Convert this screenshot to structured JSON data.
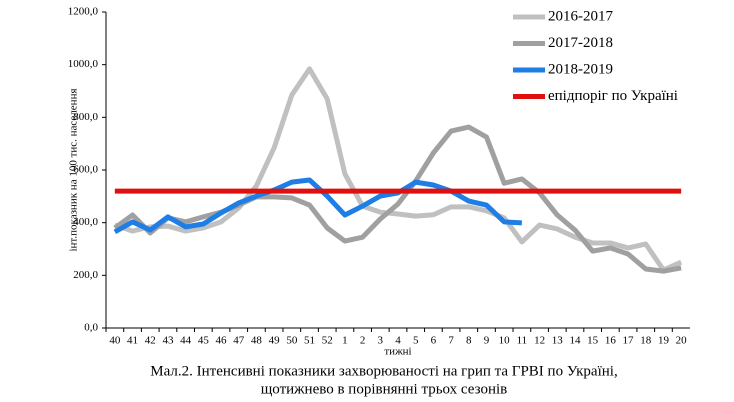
{
  "chart_data": {
    "type": "line",
    "title": "Мал.2. Інтенсивні показники захворюваності на грип та ГРВІ по Україні,",
    "subtitle": "щотижнево в порівнянні трьох сезонів",
    "x_label": "тижні",
    "y_label": "інт.показник на 100 тис. населення",
    "categories": [
      "40",
      "41",
      "42",
      "43",
      "44",
      "45",
      "46",
      "47",
      "48",
      "49",
      "50",
      "51",
      "52",
      "1",
      "2",
      "3",
      "4",
      "5",
      "6",
      "7",
      "8",
      "9",
      "10",
      "11",
      "12",
      "13",
      "14",
      "15",
      "16",
      "17",
      "18",
      "19",
      "20"
    ],
    "ylim": [
      0,
      1200
    ],
    "yticks": [
      {
        "value": 0,
        "label": "0,0"
      },
      {
        "value": 200,
        "label": "200,0"
      },
      {
        "value": 400,
        "label": "400,0"
      },
      {
        "value": 600,
        "label": "600,0"
      },
      {
        "value": 800,
        "label": "800,0"
      },
      {
        "value": 1000,
        "label": "1000,0"
      },
      {
        "value": 1200,
        "label": "1200,0"
      }
    ],
    "legend": "top-right",
    "series": [
      {
        "name": "2016-2017",
        "color": "#c0c0c0",
        "values": [
          391,
          368,
          384,
          387,
          368,
          380,
          403,
          456,
          540,
          684,
          885,
          984,
          870,
          585,
          463,
          440,
          433,
          425,
          430,
          460,
          460,
          445,
          418,
          327,
          391,
          376,
          345,
          323,
          323,
          304,
          319,
          220,
          250
        ]
      },
      {
        "name": "2017-2018",
        "color": "#a0a0a0",
        "values": [
          380,
          429,
          361,
          418,
          403,
          422,
          440,
          467,
          498,
          498,
          494,
          467,
          380,
          330,
          345,
          414,
          471,
          558,
          665,
          748,
          763,
          725,
          550,
          566,
          513,
          429,
          372,
          292,
          304,
          281,
          224,
          216,
          228
        ]
      },
      {
        "name": "2018-2019",
        "color": "#1e7ee6",
        "values": [
          365,
          403,
          372,
          422,
          384,
          395,
          437,
          475,
          501,
          524,
          554,
          562,
          501,
          429,
          463,
          501,
          513,
          554,
          543,
          520,
          482,
          467,
          403,
          399,
          null,
          null,
          null,
          null,
          null,
          null,
          null,
          null,
          null
        ]
      },
      {
        "name": "епідпоріг по Україні",
        "color": "#e01010",
        "values": [
          520,
          520,
          520,
          520,
          520,
          520,
          520,
          520,
          520,
          520,
          520,
          520,
          520,
          520,
          520,
          520,
          520,
          520,
          520,
          520,
          520,
          520,
          520,
          520,
          520,
          520,
          520,
          520,
          520,
          520,
          520,
          520,
          520
        ]
      }
    ]
  }
}
